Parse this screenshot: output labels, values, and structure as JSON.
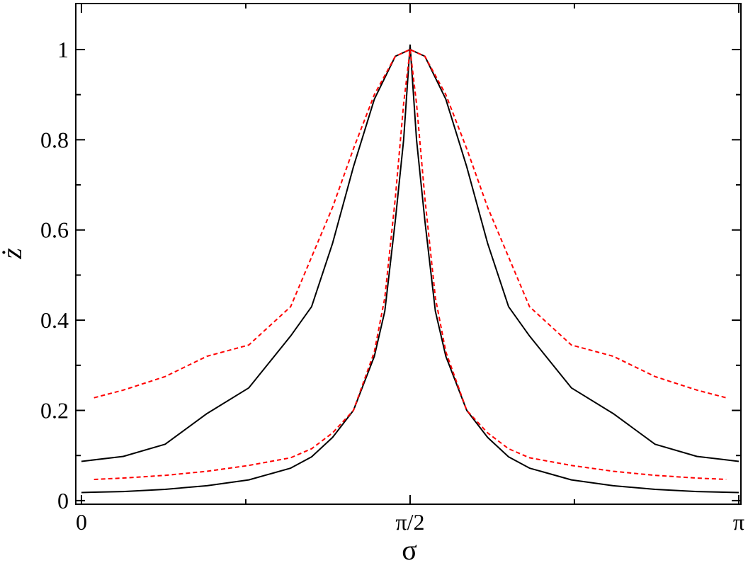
{
  "chart_data": {
    "type": "line",
    "x_label": "σ",
    "y_label": "ż",
    "xlim": [
      -0.027,
      3.152
    ],
    "ylim": [
      -0.008,
      1.102
    ],
    "xticks": [
      0,
      {
        "value": 1.5708,
        "label": "π/2"
      },
      {
        "value": 3.1416,
        "label": "π"
      }
    ],
    "xminor_ticks": [
      0.7854,
      2.3562
    ],
    "yticks": [
      0,
      0.2,
      0.4,
      0.6,
      0.8,
      1
    ],
    "yminor_ticks": [
      0.1,
      0.3,
      0.5,
      0.7,
      0.9
    ],
    "series": [
      {
        "color": "#000000",
        "dash": false,
        "x": [
          0,
          0.2,
          0.4,
          0.6,
          0.8,
          1.0,
          1.1,
          1.2,
          1.3,
          1.4,
          1.5,
          1.5708,
          1.6416,
          1.7416,
          1.8416,
          1.9416,
          2.0416,
          2.1416,
          2.3416,
          2.5416,
          2.7416,
          2.9416,
          3.1416
        ],
        "values": [
          0.087,
          0.098,
          0.125,
          0.193,
          0.25,
          0.365,
          0.43,
          0.57,
          0.74,
          0.89,
          0.985,
          1.0,
          0.985,
          0.89,
          0.74,
          0.57,
          0.43,
          0.365,
          0.25,
          0.193,
          0.125,
          0.098,
          0.087
        ]
      },
      {
        "color": "#000000",
        "dash": false,
        "x": [
          0,
          0.2,
          0.4,
          0.6,
          0.8,
          1.0,
          1.1,
          1.2,
          1.3,
          1.4,
          1.45,
          1.5,
          1.54,
          1.5708,
          1.6016,
          1.6416,
          1.6916,
          1.7416,
          1.8416,
          1.9416,
          2.0416,
          2.1416,
          2.3416,
          2.5416,
          2.7416,
          2.9416,
          3.1416
        ],
        "values": [
          0.018,
          0.02,
          0.025,
          0.033,
          0.046,
          0.072,
          0.097,
          0.14,
          0.2,
          0.32,
          0.42,
          0.62,
          0.8,
          1.01,
          0.8,
          0.62,
          0.42,
          0.32,
          0.2,
          0.14,
          0.097,
          0.072,
          0.046,
          0.033,
          0.025,
          0.02,
          0.018
        ]
      },
      {
        "color": "#ff0000",
        "dash": true,
        "x": [
          0.06,
          0.2,
          0.4,
          0.6,
          0.8,
          1.0,
          1.1,
          1.2,
          1.3,
          1.4,
          1.5,
          1.5708,
          1.6416,
          1.7416,
          1.8416,
          1.9416,
          2.0416,
          2.1416,
          2.3416,
          2.5416,
          2.7416,
          2.9416,
          3.0816
        ],
        "values": [
          0.228,
          0.245,
          0.275,
          0.32,
          0.345,
          0.43,
          0.54,
          0.65,
          0.78,
          0.9,
          0.985,
          1.0,
          0.985,
          0.9,
          0.78,
          0.65,
          0.54,
          0.43,
          0.345,
          0.32,
          0.275,
          0.245,
          0.228
        ]
      },
      {
        "color": "#ff0000",
        "dash": true,
        "x": [
          0.06,
          0.2,
          0.4,
          0.6,
          0.8,
          1.0,
          1.1,
          1.2,
          1.3,
          1.4,
          1.45,
          1.5,
          1.54,
          1.5708,
          1.6016,
          1.6416,
          1.6916,
          1.7416,
          1.8416,
          1.9416,
          2.0416,
          2.1416,
          2.3416,
          2.5416,
          2.7416,
          2.9416,
          3.0816
        ],
        "values": [
          0.047,
          0.05,
          0.056,
          0.065,
          0.078,
          0.095,
          0.115,
          0.15,
          0.2,
          0.33,
          0.45,
          0.67,
          0.88,
          1.0,
          0.88,
          0.67,
          0.45,
          0.33,
          0.2,
          0.15,
          0.115,
          0.095,
          0.078,
          0.065,
          0.056,
          0.05,
          0.047
        ]
      }
    ]
  }
}
